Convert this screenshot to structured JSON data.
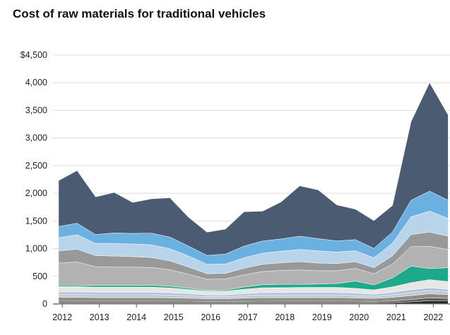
{
  "chart_data": {
    "type": "area",
    "stacked": true,
    "title": "Cost of raw materials for traditional vehicles",
    "xlabel": "",
    "ylabel": "",
    "ylim": [
      0,
      4500
    ],
    "y_ticks": [
      0,
      500,
      1000,
      1500,
      2000,
      2500,
      3000,
      3500,
      4000,
      4500
    ],
    "y_tick_labels": [
      "0",
      "500",
      "1,000",
      "1,500",
      "2,000",
      "2,500",
      "3,000",
      "3,500",
      "4,000",
      "$4,500"
    ],
    "x_ticks": [
      "2012",
      "2013",
      "2014",
      "2015",
      "2016",
      "2017",
      "2018",
      "2019",
      "2020",
      "2021",
      "2022"
    ],
    "grid": true,
    "legend": "none",
    "x": [
      "2011.9",
      "2012.4",
      "2012.9",
      "2013.4",
      "2013.9",
      "2014.4",
      "2014.9",
      "2015.4",
      "2015.9",
      "2016.4",
      "2016.9",
      "2017.4",
      "2017.9",
      "2018.4",
      "2018.9",
      "2019.4",
      "2019.9",
      "2020.4",
      "2020.9",
      "2021.4",
      "2021.9",
      "2022.4"
    ],
    "series": [
      {
        "color": "#2b2b2b",
        "values": [
          20,
          20,
          20,
          20,
          20,
          20,
          20,
          20,
          18,
          18,
          18,
          18,
          20,
          20,
          20,
          20,
          20,
          20,
          25,
          40,
          60,
          60
        ]
      },
      {
        "color": "#5a5a5a",
        "values": [
          30,
          30,
          30,
          30,
          30,
          30,
          30,
          28,
          25,
          25,
          28,
          30,
          30,
          30,
          30,
          30,
          28,
          25,
          30,
          40,
          50,
          40
        ]
      },
      {
        "color": "#8c8c8c",
        "values": [
          70,
          70,
          65,
          65,
          65,
          65,
          60,
          55,
          50,
          50,
          60,
          65,
          65,
          65,
          65,
          65,
          60,
          55,
          65,
          70,
          75,
          70
        ]
      },
      {
        "color": "#c9c9c9",
        "values": [
          55,
          55,
          55,
          55,
          55,
          55,
          50,
          45,
          40,
          40,
          45,
          50,
          50,
          50,
          50,
          50,
          45,
          40,
          50,
          60,
          60,
          55
        ]
      },
      {
        "color": "#a3c4e6",
        "values": [
          40,
          40,
          40,
          40,
          40,
          40,
          40,
          35,
          30,
          30,
          35,
          40,
          40,
          40,
          40,
          40,
          40,
          35,
          40,
          45,
          45,
          40
        ]
      },
      {
        "color": "#e6e6e6",
        "values": [
          100,
          100,
          95,
          95,
          95,
          95,
          90,
          80,
          70,
          70,
          80,
          90,
          90,
          95,
          95,
          95,
          90,
          80,
          100,
          130,
          150,
          140
        ]
      },
      {
        "color": "#1fa98b",
        "values": [
          25,
          25,
          30,
          30,
          30,
          35,
          30,
          25,
          15,
          20,
          40,
          55,
          60,
          55,
          60,
          70,
          130,
          90,
          160,
          300,
          200,
          250
        ]
      },
      {
        "color": "#b2b2b2",
        "values": [
          400,
          420,
          340,
          330,
          330,
          320,
          300,
          250,
          200,
          200,
          220,
          240,
          250,
          260,
          240,
          230,
          230,
          200,
          250,
          350,
          400,
          330
        ]
      },
      {
        "color": "#999999",
        "values": [
          220,
          230,
          200,
          200,
          190,
          180,
          160,
          130,
          100,
          100,
          120,
          130,
          140,
          150,
          140,
          130,
          120,
          110,
          150,
          220,
          260,
          240
        ]
      },
      {
        "color": "#b8d4ea",
        "values": [
          240,
          260,
          220,
          230,
          230,
          230,
          220,
          200,
          170,
          170,
          190,
          200,
          210,
          220,
          220,
          210,
          200,
          180,
          230,
          320,
          380,
          320
        ]
      },
      {
        "color": "#6ab0e0",
        "values": [
          200,
          210,
          160,
          190,
          190,
          210,
          210,
          180,
          160,
          180,
          210,
          220,
          220,
          240,
          220,
          200,
          200,
          170,
          200,
          300,
          360,
          330
        ]
      },
      {
        "color": "#4a5b72",
        "values": [
          830,
          950,
          680,
          730,
          560,
          620,
          710,
          520,
          420,
          450,
          620,
          540,
          670,
          910,
          880,
          650,
          550,
          500,
          480,
          1420,
          1960,
          1540
        ]
      }
    ]
  }
}
